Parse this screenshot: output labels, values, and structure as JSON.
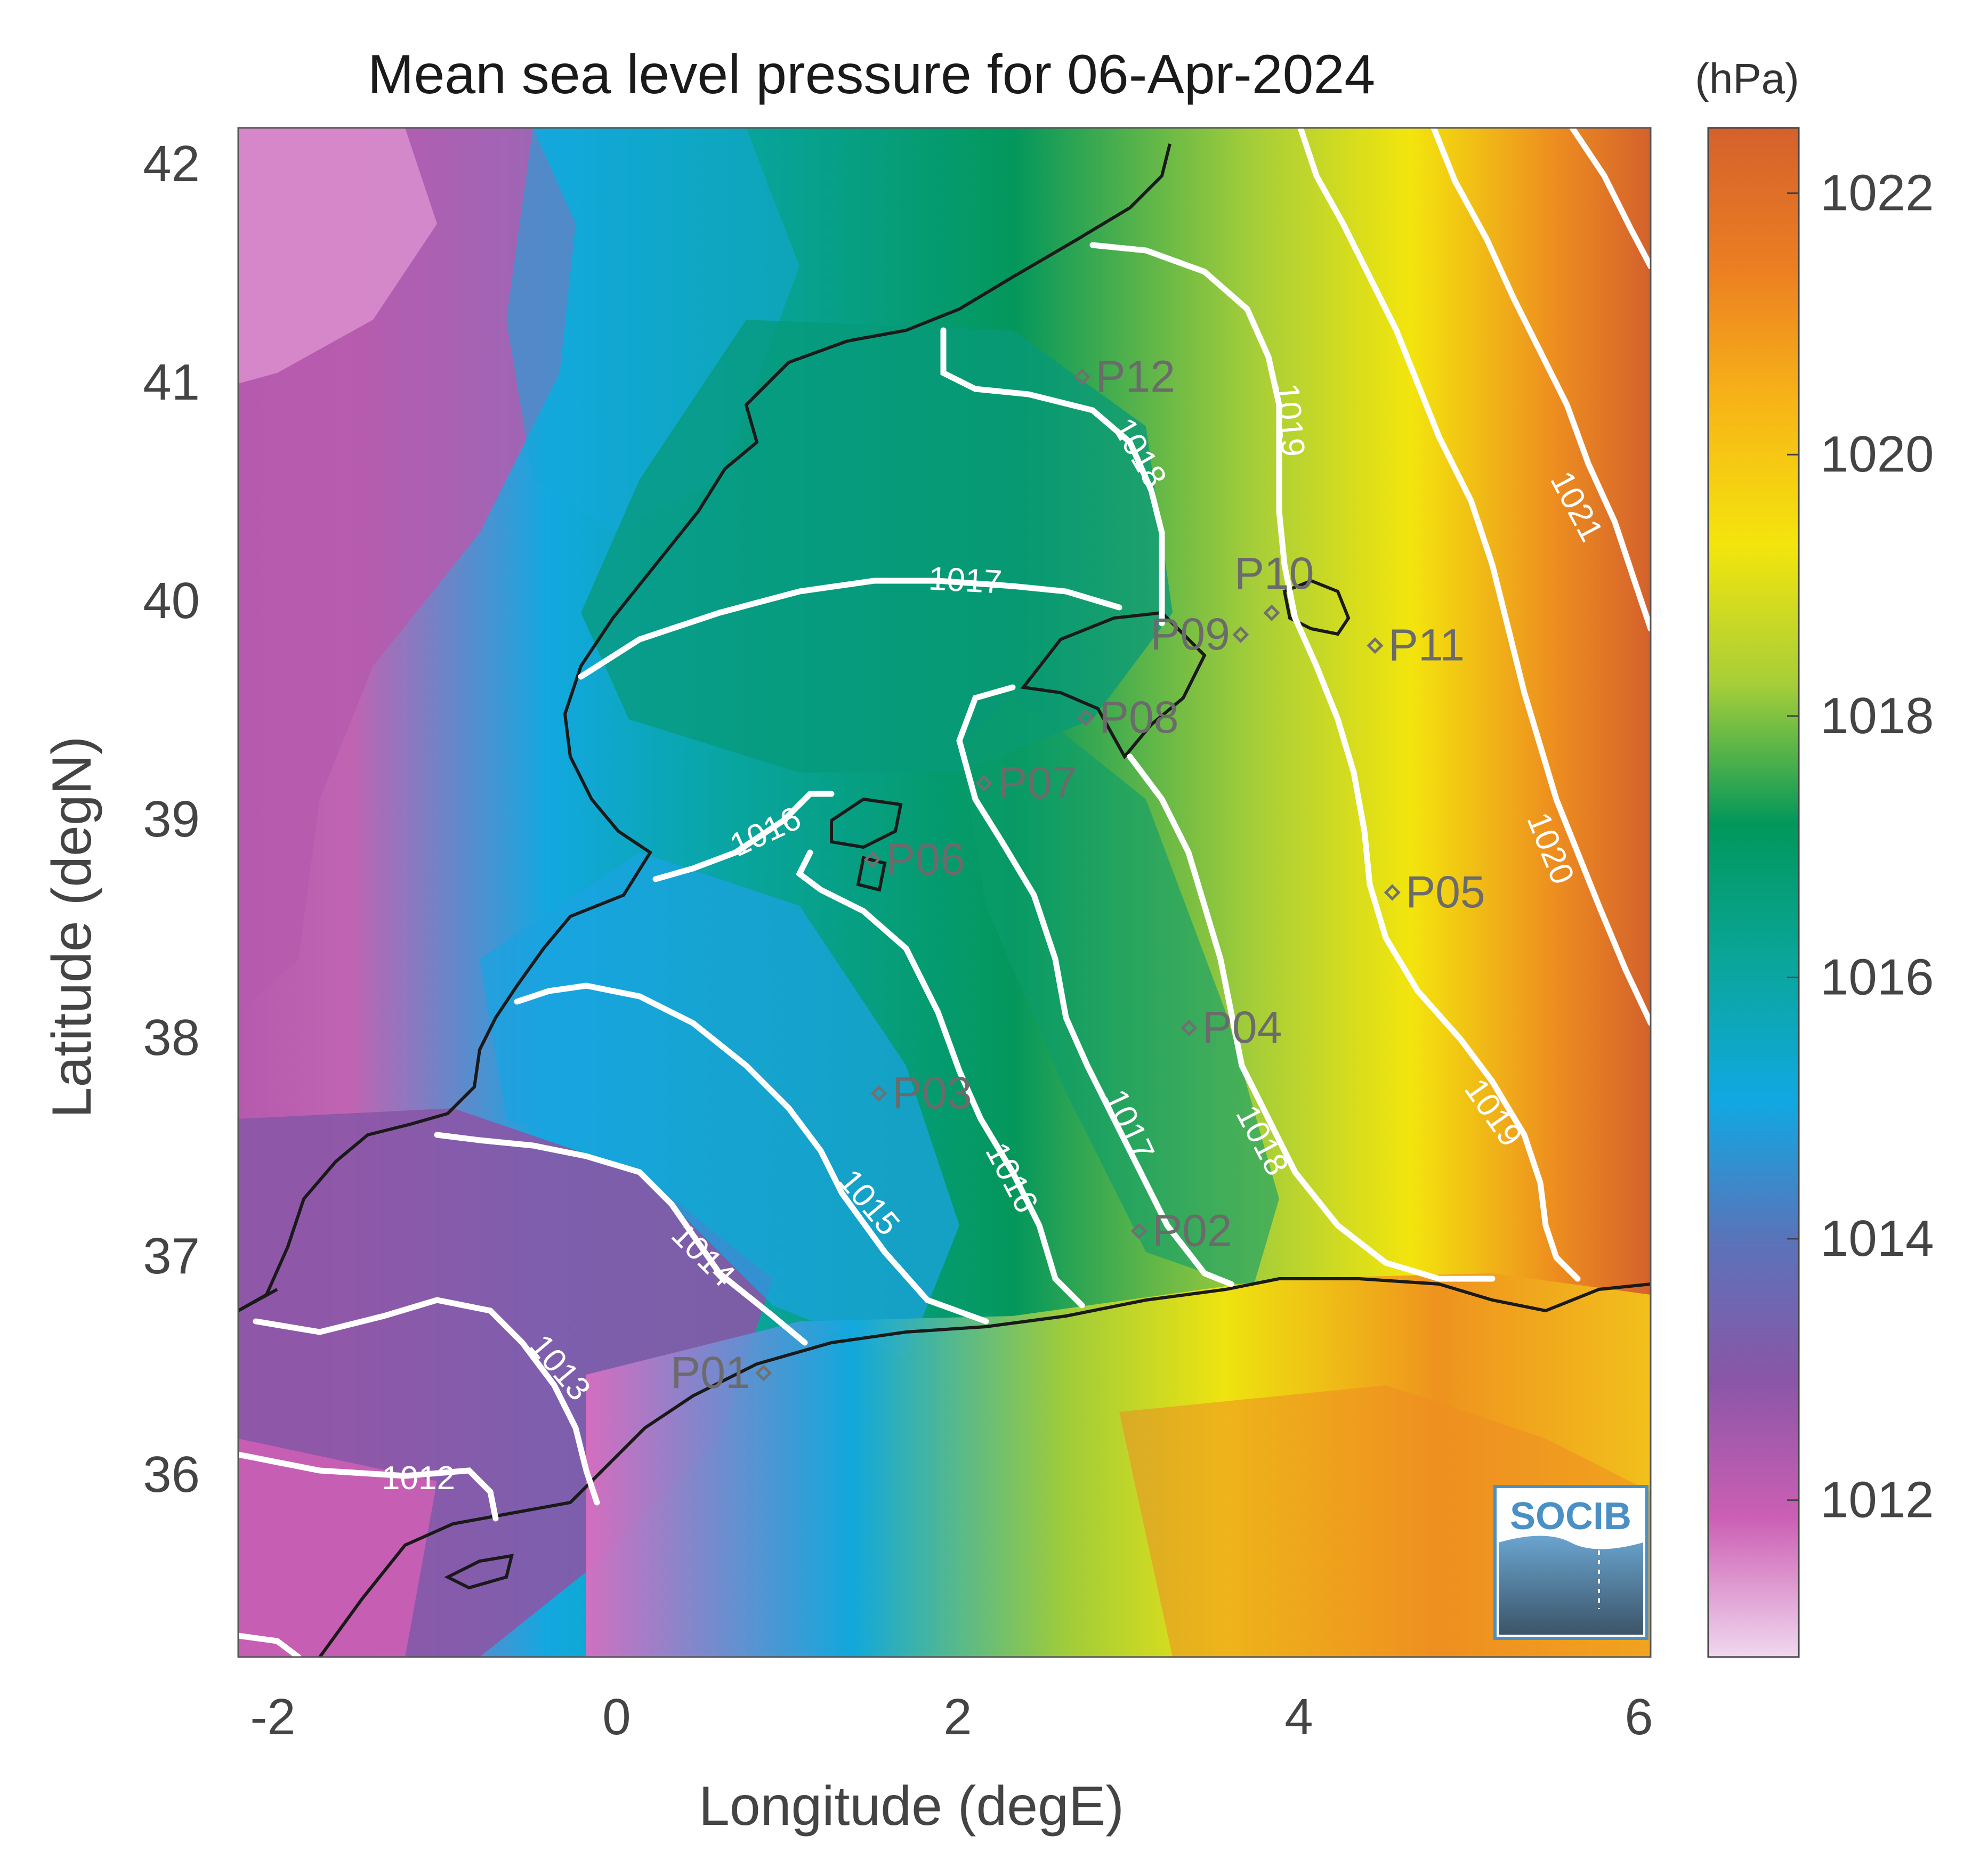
{
  "title": "Mean sea level pressure for 06-Apr-2024",
  "colorbar": {
    "unit": "(hPa)",
    "min": 1010.8,
    "max": 1022.5,
    "ticks": [
      "1012",
      "1014",
      "1016",
      "1018",
      "1020",
      "1022"
    ],
    "colors": [
      "#f0d8ee",
      "#cc5fb4",
      "#8a56a7",
      "#5a73ba",
      "#11a8e2",
      "#0aa69a",
      "#02975b",
      "#a6ce39",
      "#f3e50d",
      "#f7b617",
      "#ec7e22",
      "#d4612c"
    ]
  },
  "xaxis": {
    "label": "Longitude (degE)",
    "range": [
      -2.2,
      6
    ],
    "ticks": [
      "-2",
      "0",
      "2",
      "4",
      "6"
    ]
  },
  "yaxis": {
    "label": "Latitude (degN)",
    "range": [
      35.2,
      42.2
    ],
    "ticks": [
      "36",
      "37",
      "38",
      "39",
      "40",
      "41",
      "42"
    ]
  },
  "stations": [
    {
      "name": "P01",
      "lon": 0.85,
      "lat": 36.5
    },
    {
      "name": "P02",
      "lon": 3.03,
      "lat": 37.15
    },
    {
      "name": "P03",
      "lon": 1.52,
      "lat": 37.78
    },
    {
      "name": "P04",
      "lon": 3.32,
      "lat": 38.08
    },
    {
      "name": "P05",
      "lon": 4.5,
      "lat": 38.7
    },
    {
      "name": "P06",
      "lon": 1.48,
      "lat": 38.85
    },
    {
      "name": "P07",
      "lon": 2.13,
      "lat": 39.2
    },
    {
      "name": "P08",
      "lon": 2.72,
      "lat": 39.5
    },
    {
      "name": "P09",
      "lon": 3.62,
      "lat": 39.88
    },
    {
      "name": "P10",
      "lon": 3.8,
      "lat": 39.98
    },
    {
      "name": "P11",
      "lon": 4.4,
      "lat": 39.83
    },
    {
      "name": "P12",
      "lon": 2.7,
      "lat": 41.06
    }
  ],
  "isobar_labels": [
    "1012",
    "1013",
    "1014",
    "1015",
    "1016",
    "1016",
    "1017",
    "1017",
    "1018",
    "1018",
    "1019",
    "1019",
    "1020",
    "1021"
  ],
  "logo": "SOCIB",
  "colors": {
    "isobar": "#ffffff",
    "coastline": "#1a1a1a",
    "station_marker": "#707070"
  }
}
